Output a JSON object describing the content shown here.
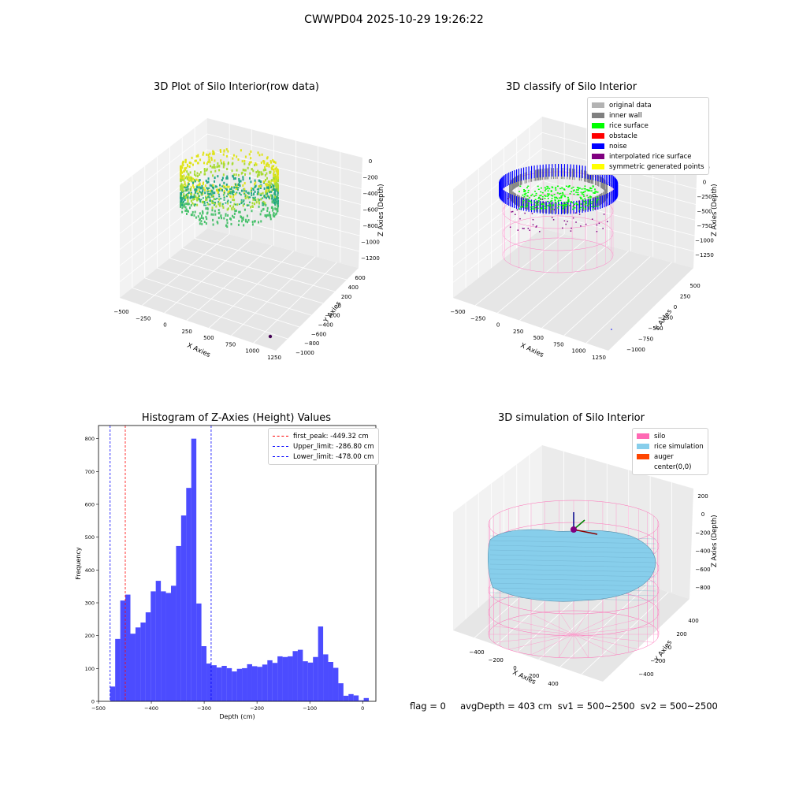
{
  "figure": {
    "suptitle": "CWWPD04 2025-10-29 19:26:22",
    "status": "flag = 0     avgDepth = 403 cm  sv1 = 500~2500  sv2 = 500~2500"
  },
  "chart_data": [
    {
      "type": "scatter",
      "title": "3D Plot of Silo Interior(row data)",
      "xlabel": "X Axies",
      "ylabel": "Y Axies",
      "zlabel": "Z Axies (Depth)",
      "x_ticks": [
        "−500",
        "−250",
        "0",
        "250",
        "500",
        "750",
        "1000",
        "1250"
      ],
      "y_ticks": [
        "600",
        "400",
        "200",
        "0",
        "−200",
        "−400",
        "−600",
        "−800",
        "−1000"
      ],
      "z_ticks": [
        "0",
        "−200",
        "−400",
        "−600",
        "−800",
        "−1000",
        "−1200"
      ],
      "colormap": "viridis"
    },
    {
      "type": "scatter",
      "title": "3D classify of Silo Interior",
      "xlabel": "X Axies",
      "ylabel": "Y Axies",
      "zlabel": "Z Axies (Depth)",
      "x_ticks": [
        "−500",
        "−250",
        "0",
        "250",
        "500",
        "750",
        "1000",
        "1250"
      ],
      "y_ticks": [
        "500",
        "250",
        "0",
        "−250",
        "−500",
        "−750",
        "−1000"
      ],
      "z_ticks": [
        "250",
        "0",
        "−250",
        "−500",
        "−750",
        "−1000",
        "−1250"
      ],
      "legend": [
        {
          "label": "original data",
          "color": "#b3b3b3"
        },
        {
          "label": "inner wall",
          "color": "#808080"
        },
        {
          "label": "rice surface",
          "color": "#00ff00"
        },
        {
          "label": "obstacle",
          "color": "#ff0000"
        },
        {
          "label": "noise",
          "color": "#0000ff"
        },
        {
          "label": "interpolated rice surface",
          "color": "#800080"
        },
        {
          "label": "symmetric generated points",
          "color": "#ffff00"
        }
      ]
    },
    {
      "type": "bar",
      "title": "Histogram of Z-Axies (Height) Values",
      "xlabel": "Depth (cm)",
      "ylabel": "Frequency",
      "xlim": [
        -500,
        25
      ],
      "ylim": [
        0,
        840
      ],
      "x_ticks": [
        {
          "v": -500,
          "l": "−500"
        },
        {
          "v": -400,
          "l": "−400"
        },
        {
          "v": -300,
          "l": "−300"
        },
        {
          "v": -200,
          "l": "−200"
        },
        {
          "v": -100,
          "l": "−100"
        },
        {
          "v": 0,
          "l": "0"
        }
      ],
      "y_ticks": [
        {
          "v": 0,
          "l": "0"
        },
        {
          "v": 100,
          "l": "100"
        },
        {
          "v": 200,
          "l": "200"
        },
        {
          "v": 300,
          "l": "300"
        },
        {
          "v": 400,
          "l": "400"
        },
        {
          "v": 500,
          "l": "500"
        },
        {
          "v": 600,
          "l": "600"
        },
        {
          "v": 700,
          "l": "700"
        },
        {
          "v": 800,
          "l": "800"
        }
      ],
      "bin_start": -478,
      "bin_width": 9.6,
      "values": [
        45,
        190,
        307,
        325,
        206,
        225,
        240,
        271,
        335,
        367,
        335,
        330,
        352,
        473,
        566,
        650,
        800,
        298,
        168,
        115,
        110,
        103,
        108,
        101,
        91,
        99,
        101,
        113,
        107,
        105,
        112,
        125,
        117,
        137,
        135,
        137,
        153,
        157,
        122,
        118,
        135,
        228,
        143,
        120,
        102,
        55,
        17,
        22,
        18,
        3,
        10
      ],
      "bar_color": "#0000ff",
      "vlines": [
        {
          "x": -449.32,
          "label": "first_peak: -449.32 cm",
          "color": "#ff0000"
        },
        {
          "x": -286.8,
          "label": "Upper_limit: -286.80 cm",
          "color": "#0000ff"
        },
        {
          "x": -478.0,
          "label": "Lower_limit: -478.00 cm",
          "color": "#0000ff"
        }
      ]
    },
    {
      "type": "other",
      "title": "3D simulation of Silo Interior",
      "xlabel": "X Axies",
      "ylabel": "Y Axies",
      "zlabel": "Z Axies (Depth)",
      "x_ticks": [
        "−400",
        "−200",
        "0",
        "200",
        "400"
      ],
      "y_ticks": [
        "400",
        "200",
        "0",
        "−200",
        "−400"
      ],
      "z_ticks": [
        "200",
        "0",
        "−200",
        "−400",
        "−600",
        "−800"
      ],
      "legend": [
        {
          "label": "silo",
          "color": "#ff69b4"
        },
        {
          "label": "rice simulation",
          "color": "#87ceeb"
        },
        {
          "label": "auger",
          "color": "#ff4500"
        },
        {
          "label": "center(0,0)",
          "color": ""
        }
      ]
    }
  ]
}
